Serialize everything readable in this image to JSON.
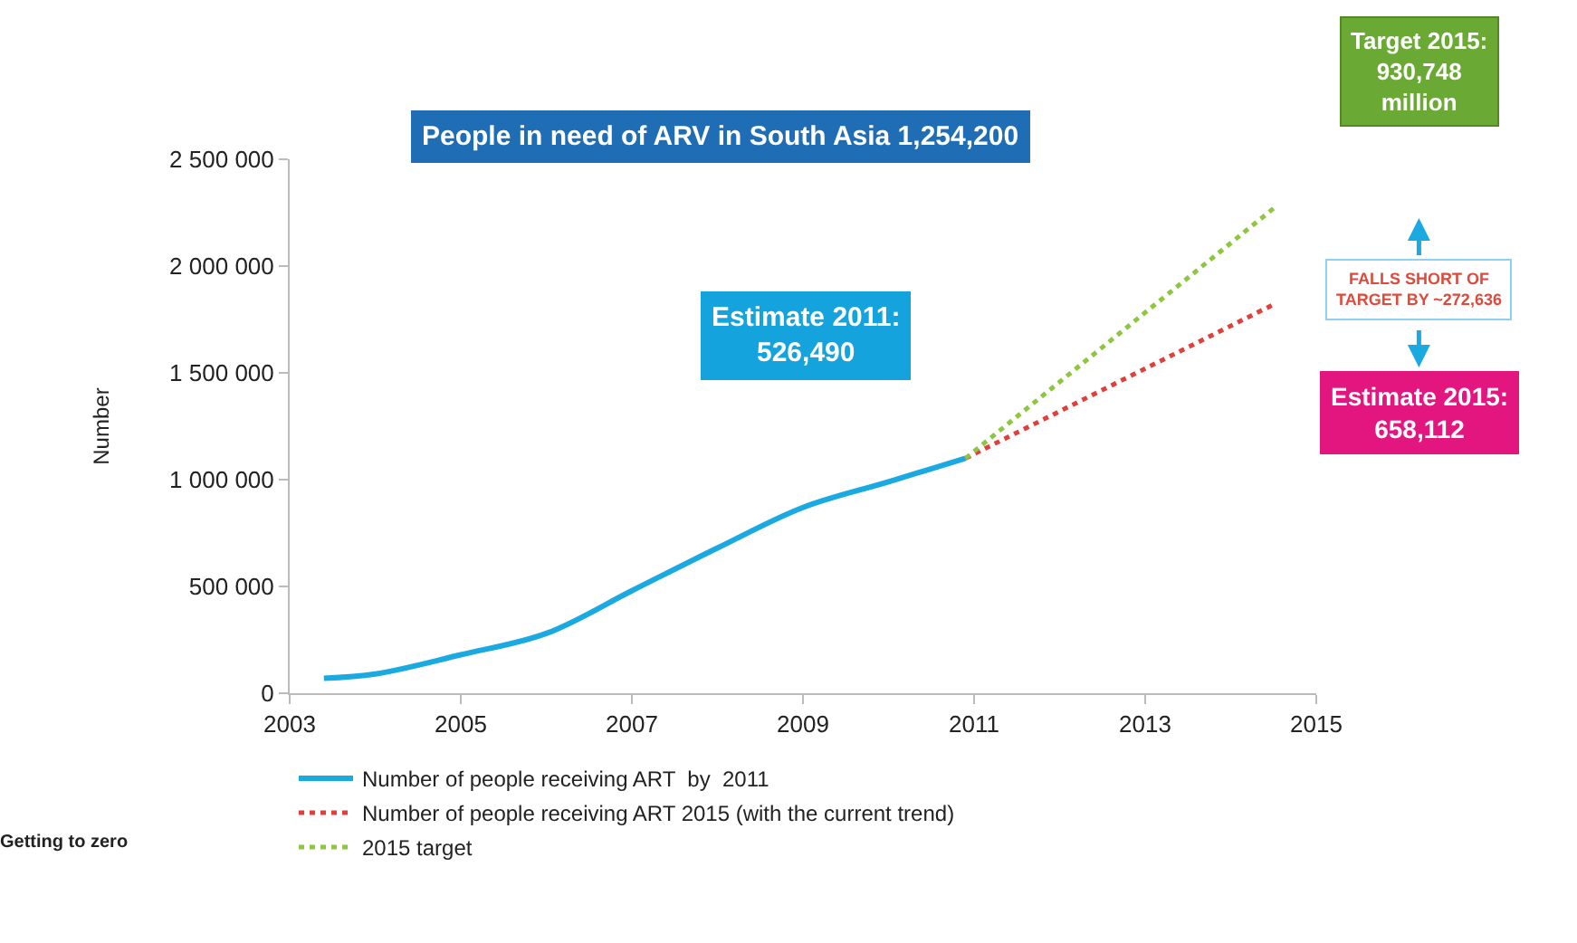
{
  "chart_data": {
    "type": "line",
    "ylabel": "Number",
    "xlim": [
      2003,
      2015
    ],
    "xticks": [
      2003,
      2005,
      2007,
      2009,
      2011,
      2013,
      2015
    ],
    "ylim": [
      0,
      2500000
    ],
    "yticks": [
      {
        "value": 0,
        "label": "0"
      },
      {
        "value": 500000,
        "label": "500 000"
      },
      {
        "value": 1000000,
        "label": "1 000 000"
      },
      {
        "value": 1500000,
        "label": "1 500 000"
      },
      {
        "value": 2000000,
        "label": "2 000 000"
      },
      {
        "value": 2500000,
        "label": "2 500 000"
      }
    ],
    "series": [
      {
        "name": "Number of people receiving ART  by  2011",
        "color": "#1ba9e1",
        "line_style": "solid",
        "x": [
          2003.4,
          2004,
          2005,
          2006,
          2007,
          2008,
          2009,
          2010,
          2010.9
        ],
        "values": [
          70000,
          90000,
          180000,
          280000,
          480000,
          680000,
          870000,
          990000,
          1100000
        ]
      },
      {
        "name": "Number of people receiving ART 2015 (with the current trend)",
        "color": "#e0403c",
        "line_style": "dotted",
        "x": [
          2010.9,
          2014.5
        ],
        "values": [
          1100000,
          1820000
        ]
      },
      {
        "name": "2015 target",
        "color": "#8dc63f",
        "line_style": "dotted",
        "x": [
          2010.9,
          2014.5
        ],
        "values": [
          1100000,
          2270000
        ]
      }
    ],
    "legend": "bottom",
    "annotations": [
      "People in need of ARV in South Asia 1,254,200",
      "Estimate 2011:\n526,490",
      "Target 2015:\n930,748\nmillion",
      "FALLS SHORT OF\nTARGET BY ~272,636",
      "Estimate 2015:\n658,112",
      "Getting to zero"
    ]
  }
}
